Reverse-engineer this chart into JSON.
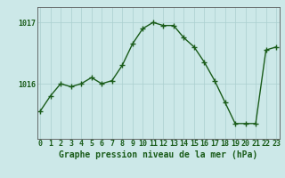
{
  "hours": [
    0,
    1,
    2,
    3,
    4,
    5,
    6,
    7,
    8,
    9,
    10,
    11,
    12,
    13,
    14,
    15,
    16,
    17,
    18,
    19,
    20,
    21,
    22,
    23
  ],
  "pressure": [
    1015.55,
    1015.8,
    1016.0,
    1015.95,
    1016.0,
    1016.1,
    1016.0,
    1016.05,
    1016.3,
    1016.65,
    1016.9,
    1017.0,
    1016.95,
    1016.95,
    1016.75,
    1016.6,
    1016.35,
    1016.05,
    1015.7,
    1015.35,
    1015.35,
    1015.35,
    1016.55,
    1016.6
  ],
  "line_color": "#1a5c1a",
  "marker": "+",
  "background_color": "#cce8e8",
  "grid_color": "#aacfcf",
  "xlabel": "Graphe pression niveau de la mer (hPa)",
  "yticks": [
    1016,
    1017
  ],
  "ylim": [
    1015.1,
    1017.25
  ],
  "xlim": [
    -0.3,
    23.3
  ],
  "xlabel_fontsize": 7,
  "tick_fontsize": 6,
  "line_width": 1.0,
  "marker_size": 4
}
